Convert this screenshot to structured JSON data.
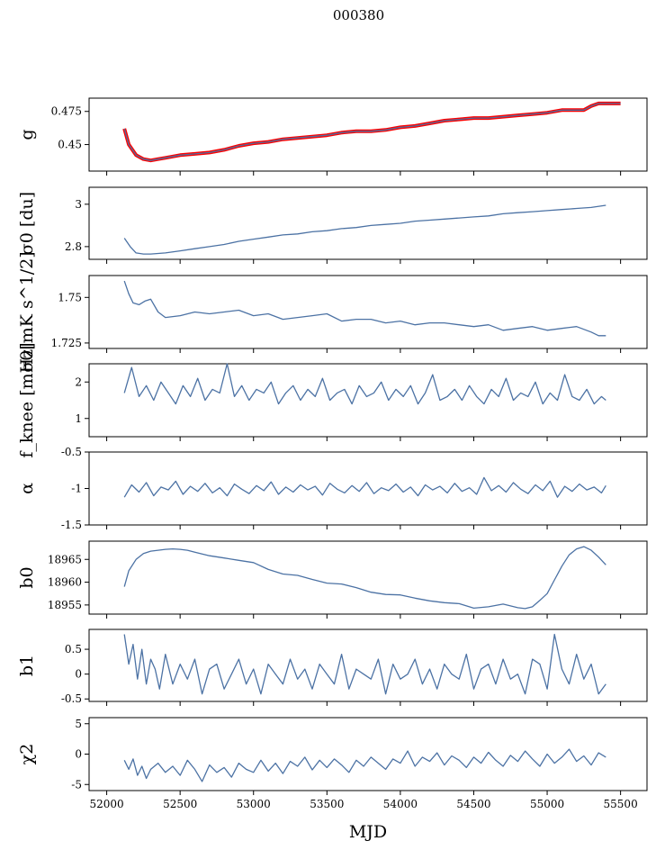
{
  "figure": {
    "title": "000380",
    "xlabel": "MJD"
  },
  "colors": {
    "line": "#4c72a4",
    "overlay": "#ff0000",
    "axis": "#000000"
  },
  "chart_data": [
    {
      "type": "line",
      "ylabel": "g",
      "xlim": [
        51880,
        55680
      ],
      "ylim": [
        0.43,
        0.485
      ],
      "yticks": [
        0.45,
        0.475
      ],
      "grid": false,
      "overlay_color": "#ff0000",
      "series": [
        {
          "x": [
            52120,
            52150,
            52200,
            52250,
            52300,
            52350,
            52400,
            52500,
            52600,
            52700,
            52800,
            52900,
            53000,
            53100,
            53200,
            53300,
            53400,
            53500,
            53600,
            53700,
            53800,
            53900,
            54000,
            54100,
            54200,
            54300,
            54400,
            54500,
            54600,
            54700,
            54800,
            54900,
            55000,
            55100,
            55200,
            55250,
            55300,
            55350,
            55400,
            55500
          ],
          "y": [
            0.462,
            0.45,
            0.442,
            0.439,
            0.438,
            0.439,
            0.44,
            0.442,
            0.443,
            0.444,
            0.446,
            0.449,
            0.451,
            0.452,
            0.454,
            0.455,
            0.456,
            0.457,
            0.459,
            0.46,
            0.46,
            0.461,
            0.463,
            0.464,
            0.466,
            0.468,
            0.469,
            0.47,
            0.47,
            0.471,
            0.472,
            0.473,
            0.474,
            0.476,
            0.476,
            0.476,
            0.479,
            0.481,
            0.481,
            0.481
          ]
        }
      ]
    },
    {
      "type": "line",
      "ylabel": "σ0 [du]",
      "xlim": [
        51880,
        55680
      ],
      "ylim": [
        2.74,
        3.08
      ],
      "yticks": [
        2.8,
        3.0
      ],
      "grid": false,
      "series": [
        {
          "x": [
            52120,
            52160,
            52200,
            52250,
            52300,
            52400,
            52500,
            52600,
            52700,
            52800,
            52900,
            53000,
            53100,
            53200,
            53300,
            53400,
            53500,
            53600,
            53700,
            53800,
            53900,
            54000,
            54100,
            54200,
            54300,
            54400,
            54500,
            54600,
            54700,
            54800,
            54900,
            55000,
            55100,
            55200,
            55300,
            55400
          ],
          "y": [
            2.84,
            2.8,
            2.77,
            2.765,
            2.765,
            2.77,
            2.78,
            2.79,
            2.8,
            2.81,
            2.825,
            2.835,
            2.845,
            2.855,
            2.86,
            2.87,
            2.875,
            2.885,
            2.89,
            2.9,
            2.905,
            2.91,
            2.92,
            2.925,
            2.93,
            2.935,
            2.94,
            2.945,
            2.955,
            2.96,
            2.965,
            2.97,
            2.975,
            2.98,
            2.985,
            2.995
          ]
        }
      ]
    },
    {
      "type": "line",
      "ylabel": "σ0[mK s^1/2]",
      "xlim": [
        51880,
        55680
      ],
      "ylim": [
        1.722,
        1.762
      ],
      "yticks": [
        1.725,
        1.75
      ],
      "grid": false,
      "series": [
        {
          "x": [
            52120,
            52150,
            52180,
            52220,
            52260,
            52300,
            52350,
            52400,
            52500,
            52600,
            52700,
            52800,
            52900,
            53000,
            53100,
            53200,
            53300,
            53400,
            53500,
            53600,
            53700,
            53800,
            53900,
            54000,
            54100,
            54200,
            54300,
            54400,
            54500,
            54600,
            54700,
            54800,
            54900,
            55000,
            55100,
            55200,
            55300,
            55350,
            55400
          ],
          "y": [
            1.759,
            1.752,
            1.747,
            1.746,
            1.748,
            1.749,
            1.742,
            1.739,
            1.74,
            1.742,
            1.741,
            1.742,
            1.743,
            1.74,
            1.741,
            1.738,
            1.739,
            1.74,
            1.741,
            1.737,
            1.738,
            1.738,
            1.736,
            1.737,
            1.735,
            1.736,
            1.736,
            1.735,
            1.734,
            1.735,
            1.732,
            1.733,
            1.734,
            1.732,
            1.733,
            1.734,
            1.731,
            1.729,
            1.729
          ]
        }
      ]
    },
    {
      "type": "line",
      "ylabel": "f_knee [mHz]",
      "xlim": [
        51880,
        55680
      ],
      "ylim": [
        0.5,
        2.5
      ],
      "yticks": [
        1,
        2
      ],
      "grid": false,
      "series": [
        {
          "x": [
            52120,
            52170,
            52220,
            52270,
            52320,
            52370,
            52420,
            52470,
            52520,
            52570,
            52620,
            52670,
            52720,
            52770,
            52820,
            52870,
            52920,
            52970,
            53020,
            53070,
            53120,
            53170,
            53220,
            53270,
            53320,
            53370,
            53420,
            53470,
            53520,
            53570,
            53620,
            53670,
            53720,
            53770,
            53820,
            53870,
            53920,
            53970,
            54020,
            54070,
            54120,
            54170,
            54220,
            54270,
            54320,
            54370,
            54420,
            54470,
            54520,
            54570,
            54620,
            54670,
            54720,
            54770,
            54820,
            54870,
            54920,
            54970,
            55020,
            55070,
            55120,
            55170,
            55220,
            55270,
            55320,
            55370,
            55400
          ],
          "y": [
            1.7,
            2.4,
            1.6,
            1.9,
            1.5,
            2.0,
            1.7,
            1.4,
            1.9,
            1.6,
            2.1,
            1.5,
            1.8,
            1.7,
            2.5,
            1.6,
            1.9,
            1.5,
            1.8,
            1.7,
            2.0,
            1.4,
            1.7,
            1.9,
            1.5,
            1.8,
            1.6,
            2.1,
            1.5,
            1.7,
            1.8,
            1.4,
            1.9,
            1.6,
            1.7,
            2.0,
            1.5,
            1.8,
            1.6,
            1.9,
            1.4,
            1.7,
            2.2,
            1.5,
            1.6,
            1.8,
            1.5,
            1.9,
            1.6,
            1.4,
            1.8,
            1.6,
            2.1,
            1.5,
            1.7,
            1.6,
            2.0,
            1.4,
            1.7,
            1.5,
            2.2,
            1.6,
            1.5,
            1.8,
            1.4,
            1.6,
            1.5
          ]
        }
      ]
    },
    {
      "type": "line",
      "ylabel": "α",
      "xlim": [
        51880,
        55680
      ],
      "ylim": [
        -1.5,
        -0.5
      ],
      "yticks": [
        -1.5,
        -1.0,
        -0.5
      ],
      "grid": false,
      "series": [
        {
          "x": [
            52120,
            52170,
            52220,
            52270,
            52320,
            52370,
            52420,
            52470,
            52520,
            52570,
            52620,
            52670,
            52720,
            52770,
            52820,
            52870,
            52920,
            52970,
            53020,
            53070,
            53120,
            53170,
            53220,
            53270,
            53320,
            53370,
            53420,
            53470,
            53520,
            53570,
            53620,
            53670,
            53720,
            53770,
            53820,
            53870,
            53920,
            53970,
            54020,
            54070,
            54120,
            54170,
            54220,
            54270,
            54320,
            54370,
            54420,
            54470,
            54520,
            54570,
            54620,
            54670,
            54720,
            54770,
            54820,
            54870,
            54920,
            54970,
            55020,
            55070,
            55120,
            55170,
            55220,
            55270,
            55320,
            55370,
            55400
          ],
          "y": [
            -1.12,
            -0.95,
            -1.05,
            -0.92,
            -1.1,
            -0.98,
            -1.02,
            -0.9,
            -1.08,
            -0.97,
            -1.04,
            -0.93,
            -1.06,
            -0.99,
            -1.1,
            -0.94,
            -1.01,
            -1.07,
            -0.96,
            -1.03,
            -0.91,
            -1.08,
            -0.98,
            -1.05,
            -0.95,
            -1.02,
            -0.97,
            -1.09,
            -0.93,
            -1.01,
            -1.06,
            -0.96,
            -1.04,
            -0.92,
            -1.07,
            -0.99,
            -1.03,
            -0.94,
            -1.05,
            -0.98,
            -1.1,
            -0.95,
            -1.02,
            -0.97,
            -1.06,
            -0.93,
            -1.04,
            -0.99,
            -1.08,
            -0.85,
            -1.03,
            -0.96,
            -1.05,
            -0.92,
            -1.01,
            -1.07,
            -0.95,
            -1.03,
            -0.9,
            -1.12,
            -0.97,
            -1.04,
            -0.94,
            -1.02,
            -0.98,
            -1.06,
            -0.96
          ]
        }
      ]
    },
    {
      "type": "line",
      "ylabel": "b0",
      "xlim": [
        51880,
        55680
      ],
      "ylim": [
        18953,
        18969
      ],
      "yticks": [
        18955,
        18960,
        18965
      ],
      "grid": false,
      "series": [
        {
          "x": [
            52120,
            52150,
            52200,
            52250,
            52300,
            52350,
            52400,
            52450,
            52500,
            52550,
            52600,
            52650,
            52700,
            52800,
            52900,
            53000,
            53100,
            53200,
            53300,
            53400,
            53500,
            53600,
            53700,
            53800,
            53900,
            54000,
            54100,
            54200,
            54300,
            54400,
            54500,
            54600,
            54700,
            54800,
            54850,
            54900,
            54950,
            55000,
            55050,
            55100,
            55150,
            55200,
            55250,
            55300,
            55350,
            55400
          ],
          "y": [
            18959,
            18962.5,
            18965,
            18966.3,
            18966.8,
            18967,
            18967.2,
            18967.3,
            18967.2,
            18967,
            18966.6,
            18966.2,
            18965.8,
            18965.3,
            18964.8,
            18964.3,
            18962.8,
            18961.8,
            18961.5,
            18960.6,
            18959.8,
            18959.6,
            18958.8,
            18957.8,
            18957.3,
            18957.2,
            18956.5,
            18955.9,
            18955.5,
            18955.3,
            18954.3,
            18954.6,
            18955.2,
            18954.4,
            18954.2,
            18954.6,
            18956.0,
            18957.5,
            18960.5,
            18963.5,
            18966.0,
            18967.3,
            18967.8,
            18967.0,
            18965.5,
            18963.8
          ]
        }
      ]
    },
    {
      "type": "line",
      "ylabel": "b1",
      "xlim": [
        51880,
        55680
      ],
      "ylim": [
        -0.55,
        0.9
      ],
      "yticks": [
        -0.5,
        0.0,
        0.5
      ],
      "grid": false,
      "series": [
        {
          "x": [
            52120,
            52150,
            52180,
            52210,
            52240,
            52270,
            52300,
            52330,
            52360,
            52400,
            52450,
            52500,
            52550,
            52600,
            52650,
            52700,
            52750,
            52800,
            52850,
            52900,
            52950,
            53000,
            53050,
            53100,
            53150,
            53200,
            53250,
            53300,
            53350,
            53400,
            53450,
            53500,
            53550,
            53600,
            53650,
            53700,
            53750,
            53800,
            53850,
            53900,
            53950,
            54000,
            54050,
            54100,
            54150,
            54200,
            54250,
            54300,
            54350,
            54400,
            54450,
            54500,
            54550,
            54600,
            54650,
            54700,
            54750,
            54800,
            54850,
            54900,
            54950,
            55000,
            55050,
            55100,
            55150,
            55200,
            55250,
            55300,
            55350,
            55400
          ],
          "y": [
            0.8,
            0.2,
            0.6,
            -0.1,
            0.5,
            -0.2,
            0.3,
            0.1,
            -0.3,
            0.4,
            -0.2,
            0.2,
            -0.1,
            0.3,
            -0.4,
            0.1,
            0.2,
            -0.3,
            0.0,
            0.3,
            -0.2,
            0.1,
            -0.4,
            0.2,
            0.0,
            -0.2,
            0.3,
            -0.1,
            0.1,
            -0.3,
            0.2,
            0.0,
            -0.2,
            0.4,
            -0.3,
            0.1,
            0.0,
            -0.1,
            0.3,
            -0.4,
            0.2,
            -0.1,
            0.0,
            0.3,
            -0.2,
            0.1,
            -0.3,
            0.2,
            0.0,
            -0.1,
            0.4,
            -0.3,
            0.1,
            0.2,
            -0.2,
            0.3,
            -0.1,
            0.0,
            -0.4,
            0.3,
            0.2,
            -0.3,
            0.8,
            0.1,
            -0.2,
            0.4,
            -0.1,
            0.2,
            -0.4,
            -0.2
          ]
        }
      ]
    },
    {
      "type": "line",
      "ylabel": "χ2",
      "xlim": [
        51880,
        55680
      ],
      "ylim": [
        -6,
        6
      ],
      "yticks": [
        -5,
        0,
        5
      ],
      "xticks": [
        52000,
        52500,
        53000,
        53500,
        54000,
        54500,
        55000,
        55500
      ],
      "grid": false,
      "series": [
        {
          "x": [
            52120,
            52150,
            52180,
            52210,
            52240,
            52270,
            52300,
            52350,
            52400,
            52450,
            52500,
            52550,
            52600,
            52650,
            52700,
            52750,
            52800,
            52850,
            52900,
            52950,
            53000,
            53050,
            53100,
            53150,
            53200,
            53250,
            53300,
            53350,
            53400,
            53450,
            53500,
            53550,
            53600,
            53650,
            53700,
            53750,
            53800,
            53850,
            53900,
            53950,
            54000,
            54050,
            54100,
            54150,
            54200,
            54250,
            54300,
            54350,
            54400,
            54450,
            54500,
            54550,
            54600,
            54650,
            54700,
            54750,
            54800,
            54850,
            54900,
            54950,
            55000,
            55050,
            55100,
            55150,
            55200,
            55250,
            55300,
            55350,
            55400
          ],
          "y": [
            -1.0,
            -2.5,
            -0.8,
            -3.5,
            -2.0,
            -4.0,
            -2.5,
            -1.5,
            -3.0,
            -2.0,
            -3.5,
            -1.0,
            -2.5,
            -4.5,
            -1.8,
            -3.0,
            -2.2,
            -3.8,
            -1.5,
            -2.5,
            -3.0,
            -1.0,
            -2.8,
            -1.5,
            -3.2,
            -1.2,
            -2.0,
            -0.5,
            -2.6,
            -1.0,
            -2.2,
            -0.8,
            -1.8,
            -3.0,
            -1.0,
            -2.0,
            -0.5,
            -1.5,
            -2.5,
            -0.8,
            -1.5,
            0.5,
            -2.0,
            -0.5,
            -1.2,
            0.2,
            -1.8,
            -0.3,
            -1.0,
            -2.2,
            -0.5,
            -1.5,
            0.3,
            -1.0,
            -2.0,
            -0.2,
            -1.2,
            0.5,
            -0.8,
            -2.0,
            0.0,
            -1.5,
            -0.5,
            0.8,
            -1.2,
            -0.3,
            -1.8,
            0.2,
            -0.5
          ]
        }
      ]
    }
  ]
}
